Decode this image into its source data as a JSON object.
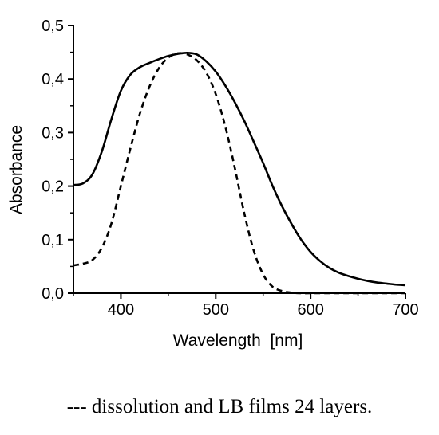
{
  "chart_data": {
    "type": "line",
    "xlabel": "Wavelength  [nm]",
    "ylabel": "Absorbance",
    "xlim": [
      350,
      700
    ],
    "ylim": [
      0.0,
      0.5
    ],
    "x_ticks": [
      400,
      500,
      600,
      700
    ],
    "x_tick_labels": [
      "400",
      "500",
      "600",
      "700"
    ],
    "y_ticks": [
      0.0,
      0.1,
      0.2,
      0.3,
      0.4,
      0.5
    ],
    "y_tick_labels": [
      "0,0",
      "0,1",
      "0,2",
      "0,3",
      "0,4",
      "0,5"
    ],
    "grid": false,
    "series": [
      {
        "style": "solid",
        "color": "#000000",
        "points": [
          [
            350,
            0.202
          ],
          [
            360,
            0.205
          ],
          [
            370,
            0.222
          ],
          [
            380,
            0.265
          ],
          [
            390,
            0.325
          ],
          [
            400,
            0.378
          ],
          [
            410,
            0.408
          ],
          [
            420,
            0.422
          ],
          [
            430,
            0.43
          ],
          [
            440,
            0.437
          ],
          [
            450,
            0.443
          ],
          [
            460,
            0.447
          ],
          [
            470,
            0.449
          ],
          [
            480,
            0.446
          ],
          [
            490,
            0.433
          ],
          [
            500,
            0.414
          ],
          [
            510,
            0.388
          ],
          [
            520,
            0.357
          ],
          [
            530,
            0.322
          ],
          [
            540,
            0.283
          ],
          [
            550,
            0.243
          ],
          [
            560,
            0.2
          ],
          [
            570,
            0.162
          ],
          [
            580,
            0.129
          ],
          [
            590,
            0.1
          ],
          [
            600,
            0.077
          ],
          [
            610,
            0.06
          ],
          [
            620,
            0.047
          ],
          [
            630,
            0.038
          ],
          [
            640,
            0.032
          ],
          [
            650,
            0.027
          ],
          [
            660,
            0.023
          ],
          [
            670,
            0.02
          ],
          [
            680,
            0.018
          ],
          [
            690,
            0.016
          ],
          [
            700,
            0.015
          ]
        ]
      },
      {
        "style": "dashed",
        "color": "#000000",
        "points": [
          [
            350,
            0.052
          ],
          [
            360,
            0.055
          ],
          [
            370,
            0.062
          ],
          [
            380,
            0.085
          ],
          [
            390,
            0.13
          ],
          [
            400,
            0.2
          ],
          [
            410,
            0.27
          ],
          [
            420,
            0.335
          ],
          [
            430,
            0.385
          ],
          [
            440,
            0.42
          ],
          [
            450,
            0.44
          ],
          [
            460,
            0.448
          ],
          [
            470,
            0.446
          ],
          [
            480,
            0.435
          ],
          [
            490,
            0.412
          ],
          [
            500,
            0.372
          ],
          [
            510,
            0.312
          ],
          [
            520,
            0.235
          ],
          [
            530,
            0.15
          ],
          [
            540,
            0.08
          ],
          [
            550,
            0.035
          ],
          [
            560,
            0.012
          ],
          [
            570,
            0.004
          ],
          [
            580,
            0.001
          ],
          [
            590,
            0.0
          ],
          [
            600,
            0.0
          ],
          [
            620,
            0.0
          ],
          [
            640,
            0.0
          ],
          [
            660,
            0.0
          ],
          [
            680,
            0.0
          ],
          [
            700,
            0.0
          ]
        ]
      }
    ]
  },
  "caption": "--- dissolution and LB films 24 layers."
}
